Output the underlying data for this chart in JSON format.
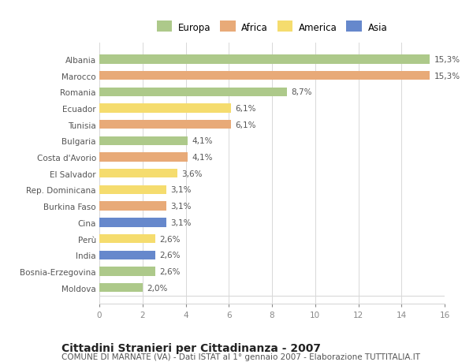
{
  "countries": [
    "Albania",
    "Marocco",
    "Romania",
    "Ecuador",
    "Tunisia",
    "Bulgaria",
    "Costa d'Avorio",
    "El Salvador",
    "Rep. Dominicana",
    "Burkina Faso",
    "Cina",
    "Perù",
    "India",
    "Bosnia-Erzegovina",
    "Moldova"
  ],
  "values": [
    15.3,
    15.3,
    8.7,
    6.1,
    6.1,
    4.1,
    4.1,
    3.6,
    3.1,
    3.1,
    3.1,
    2.6,
    2.6,
    2.6,
    2.0
  ],
  "labels": [
    "15,3%",
    "15,3%",
    "8,7%",
    "6,1%",
    "6,1%",
    "4,1%",
    "4,1%",
    "3,6%",
    "3,1%",
    "3,1%",
    "3,1%",
    "2,6%",
    "2,6%",
    "2,6%",
    "2,0%"
  ],
  "continents": [
    "Europa",
    "Africa",
    "Europa",
    "America",
    "Africa",
    "Europa",
    "Africa",
    "America",
    "America",
    "Africa",
    "Asia",
    "America",
    "Asia",
    "Europa",
    "Europa"
  ],
  "colors": {
    "Europa": "#adc98a",
    "Africa": "#e8aa78",
    "America": "#f5dc6e",
    "Asia": "#6688cc"
  },
  "xlim": [
    0,
    16
  ],
  "xticks": [
    0,
    2,
    4,
    6,
    8,
    10,
    12,
    14,
    16
  ],
  "title": "Cittadini Stranieri per Cittadinanza - 2007",
  "subtitle": "COMUNE DI MARNATE (VA) - Dati ISTAT al 1° gennaio 2007 - Elaborazione TUTTITALIA.IT",
  "background_color": "#ffffff",
  "bar_height": 0.55,
  "grid_color": "#d8d8d8",
  "label_fontsize": 7.5,
  "ytick_fontsize": 7.5,
  "xtick_fontsize": 7.5,
  "title_fontsize": 10,
  "subtitle_fontsize": 7.5,
  "legend_fontsize": 8.5
}
